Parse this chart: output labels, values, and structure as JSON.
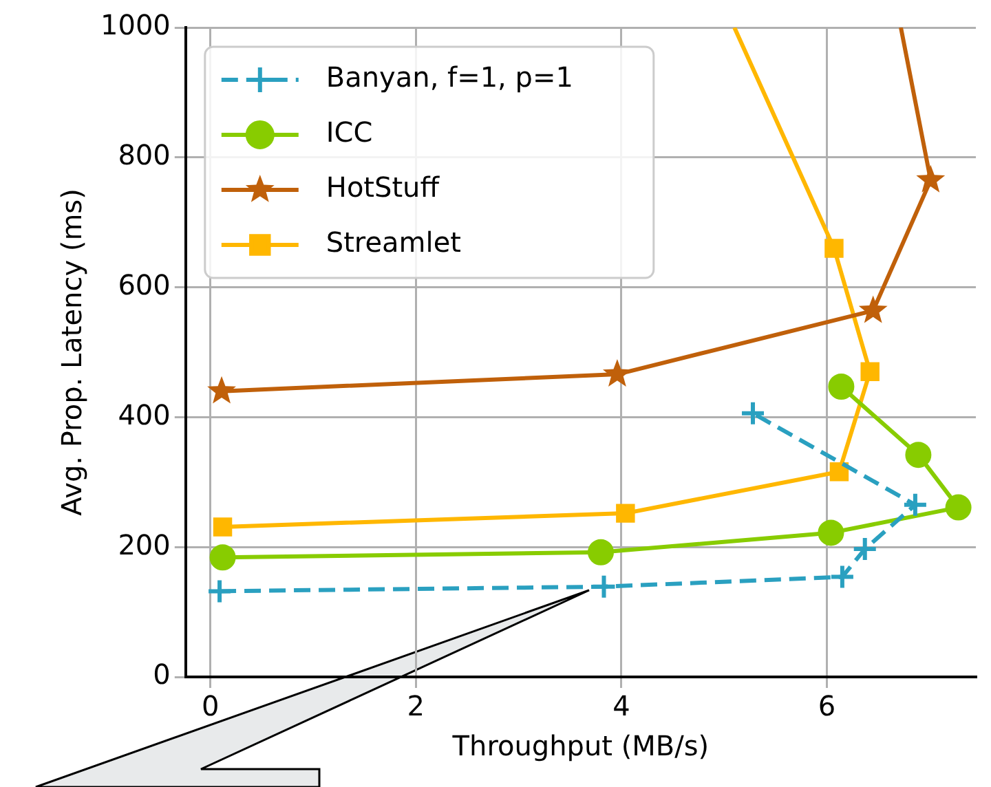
{
  "chart_data": {
    "type": "line",
    "xlabel": "Throughput (MB/s)",
    "ylabel": "Avg. Prop. Latency (ms)",
    "xlim": [
      -0.24,
      7.45
    ],
    "xticks": [
      0,
      2,
      4,
      6
    ],
    "ylim": [
      0,
      1000
    ],
    "yticks": [
      0,
      200,
      400,
      600,
      800,
      1000
    ],
    "grid": true,
    "legend": "top left",
    "series": [
      {
        "name": "Banyan, f=1, p=1",
        "color": "#2aa0c0",
        "marker": "cross",
        "line_style": "dashed",
        "x": [
          0.09,
          3.83,
          6.15,
          6.37,
          6.86,
          5.28
        ],
        "values": [
          132,
          139,
          154,
          197,
          265,
          406
        ]
      },
      {
        "name": "ICC",
        "color": "#88cc00",
        "marker": "circle",
        "line_style": "solid",
        "x": [
          0.12,
          3.8,
          6.04,
          7.28,
          6.89,
          6.14
        ],
        "values": [
          184,
          192,
          222,
          261,
          342,
          447
        ]
      },
      {
        "name": "HotStuff",
        "color": "#c0600a",
        "marker": "star",
        "line_style": "solid",
        "x": [
          0.11,
          3.96,
          6.45,
          7.01,
          6.72
        ],
        "values": [
          440,
          466,
          564,
          765,
          1000
        ]
      },
      {
        "name": "Streamlet",
        "color": "#ffb700",
        "marker": "square",
        "line_style": "solid",
        "x": [
          0.12,
          4.04,
          6.12,
          6.42,
          6.07,
          5.1
        ],
        "values": [
          231,
          252,
          316,
          470,
          660,
          1000
        ]
      }
    ]
  }
}
